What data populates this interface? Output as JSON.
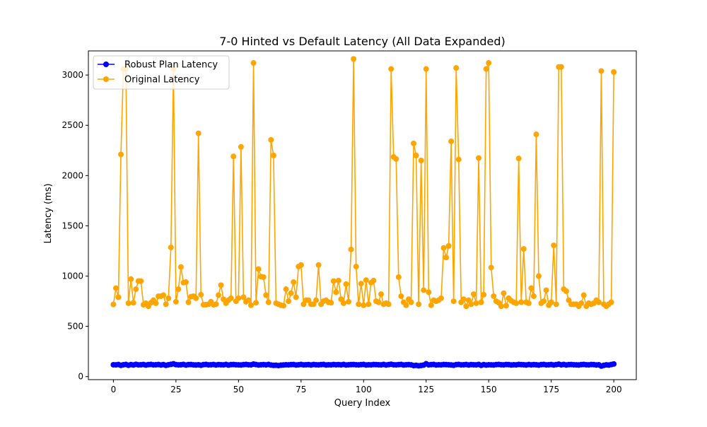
{
  "chart_data": {
    "type": "line",
    "title": "7-0 Hinted vs Default Latency (All Data Expanded)",
    "xlabel": "Query Index",
    "ylabel": "Latency (ms)",
    "xlim": [
      -10,
      209
    ],
    "ylim": [
      -30,
      3240
    ],
    "xticks": [
      0,
      25,
      50,
      75,
      100,
      125,
      150,
      175,
      200
    ],
    "yticks": [
      0,
      500,
      1000,
      1500,
      2000,
      2500,
      3000
    ],
    "grid": false,
    "legend_position": "top-left",
    "x_start": 0,
    "series": [
      {
        "name": "Robust Plan Latency",
        "color": "#0000ff",
        "values": [
          118,
          117,
          120,
          112,
          118,
          121,
          113,
          119,
          116,
          122,
          117,
          118,
          120,
          115,
          119,
          121,
          117,
          118,
          120,
          116,
          119,
          112,
          118,
          122,
          127,
          119,
          117,
          118,
          121,
          115,
          119,
          120,
          117,
          116,
          118,
          113,
          119,
          121,
          117,
          118,
          120,
          116,
          119,
          118,
          117,
          121,
          115,
          119,
          120,
          118,
          117,
          116,
          119,
          121,
          118,
          117,
          125,
          120,
          116,
          118,
          119,
          117,
          121,
          115,
          112,
          113,
          110,
          114,
          116,
          118,
          117,
          119,
          120,
          116,
          118,
          121,
          117,
          118,
          119,
          116,
          120,
          118,
          117,
          119,
          121,
          116,
          118,
          117,
          120,
          118,
          119,
          117,
          121,
          116,
          118,
          119,
          120,
          118,
          117,
          119,
          121,
          116,
          118,
          117,
          120,
          119,
          118,
          117,
          121,
          116,
          119,
          123,
          118,
          117,
          119,
          121,
          116,
          118,
          119,
          117,
          110,
          112,
          108,
          111,
          115,
          128,
          117,
          119,
          121,
          116,
          118,
          117,
          120,
          119,
          118,
          116,
          113,
          119,
          121,
          117,
          118,
          120,
          116,
          119,
          118,
          117,
          121,
          112,
          119,
          115,
          118,
          117,
          116,
          119,
          121,
          118,
          117,
          120,
          119,
          116,
          118,
          117,
          121,
          119,
          118,
          116,
          120,
          117,
          119,
          118,
          115,
          119,
          121,
          117,
          118,
          120,
          116,
          119,
          124,
          117,
          121,
          116,
          119,
          120,
          118,
          117,
          116,
          119,
          121,
          118,
          117,
          120,
          119,
          116,
          118,
          105,
          112,
          117,
          115,
          120,
          126
        ]
      },
      {
        "name": "Original Latency",
        "color": "#ffa500",
        "values": [
          718,
          880,
          790,
          2210,
          3060,
          3060,
          730,
          970,
          735,
          870,
          950,
          950,
          715,
          730,
          700,
          735,
          760,
          730,
          800,
          800,
          810,
          720,
          780,
          1285,
          3060,
          745,
          870,
          1090,
          935,
          940,
          740,
          795,
          800,
          780,
          2420,
          815,
          715,
          715,
          720,
          745,
          715,
          720,
          810,
          910,
          770,
          730,
          760,
          780,
          2190,
          750,
          780,
          2285,
          790,
          745,
          760,
          710,
          3120,
          735,
          1070,
          995,
          990,
          810,
          740,
          2355,
          2200,
          730,
          720,
          710,
          705,
          870,
          750,
          830,
          940,
          790,
          1095,
          1110,
          720,
          760,
          760,
          720,
          720,
          760,
          1110,
          720,
          750,
          760,
          740,
          735,
          950,
          840,
          955,
          770,
          730,
          920,
          745,
          1265,
          3160,
          1095,
          720,
          925,
          710,
          960,
          720,
          935,
          955,
          750,
          740,
          820,
          720,
          730,
          720,
          3060,
          2185,
          2165,
          990,
          800,
          740,
          710,
          770,
          740,
          2320,
          2200,
          720,
          2150,
          860,
          3060,
          840,
          710,
          760,
          750,
          760,
          780,
          1280,
          1185,
          1300,
          2340,
          750,
          3070,
          2160,
          740,
          770,
          700,
          760,
          720,
          820,
          730,
          2175,
          740,
          815,
          3060,
          3120,
          1085,
          800,
          750,
          735,
          700,
          830,
          705,
          780,
          755,
          740,
          730,
          2170,
          740,
          1270,
          740,
          730,
          880,
          800,
          2410,
          1000,
          730,
          750,
          860,
          710,
          740,
          1305,
          720,
          3080,
          3080,
          870,
          850,
          760,
          720,
          720,
          720,
          700,
          730,
          810,
          700,
          730,
          720,
          730,
          760,
          740,
          3040,
          720,
          700,
          720,
          740,
          3030
        ]
      }
    ]
  }
}
